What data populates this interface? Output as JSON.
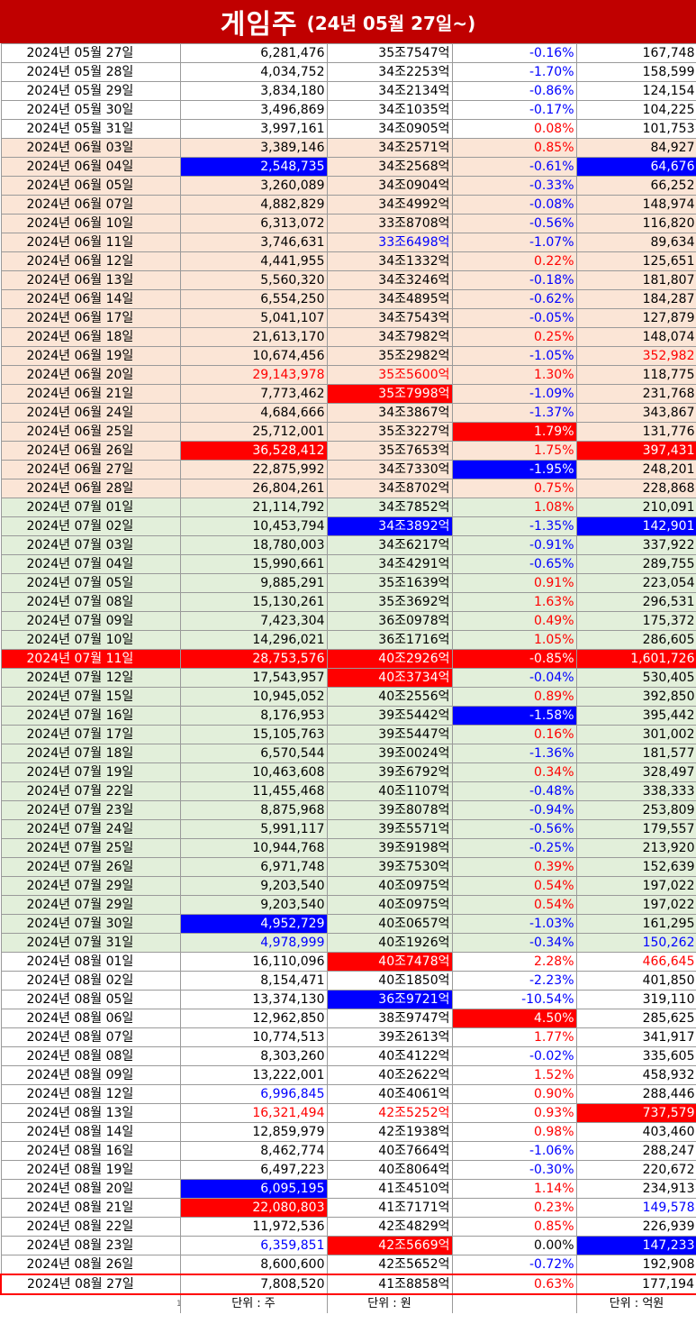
{
  "title": {
    "main": "게임주",
    "sub": "(24년 05월 27일~)"
  },
  "units": [
    "1",
    "단위 : 주",
    "단위 : 원",
    "",
    "단위 : 억원"
  ],
  "rows": [
    {
      "date": "2024년 05월 27일",
      "volume": "6,281,476",
      "cap": "35조7547억",
      "change": "-0.16%",
      "amount": "167,748",
      "bg": "white",
      "styles": [
        "",
        "",
        "",
        "blue",
        ""
      ]
    },
    {
      "date": "2024년 05월 28일",
      "volume": "4,034,752",
      "cap": "34조2253억",
      "change": "-1.70%",
      "amount": "158,599",
      "bg": "white",
      "styles": [
        "",
        "",
        "",
        "blue",
        ""
      ]
    },
    {
      "date": "2024년 05월 29일",
      "volume": "3,834,180",
      "cap": "34조2134억",
      "change": "-0.86%",
      "amount": "124,154",
      "bg": "white",
      "styles": [
        "",
        "",
        "",
        "blue",
        ""
      ]
    },
    {
      "date": "2024년 05월 30일",
      "volume": "3,496,869",
      "cap": "34조1035억",
      "change": "-0.17%",
      "amount": "104,225",
      "bg": "white",
      "styles": [
        "",
        "",
        "",
        "blue",
        ""
      ]
    },
    {
      "date": "2024년 05월 31일",
      "volume": "3,997,161",
      "cap": "34조0905억",
      "change": "0.08%",
      "amount": "101,753",
      "bg": "white",
      "styles": [
        "",
        "",
        "",
        "red",
        ""
      ]
    },
    {
      "date": "2024년 06월 03일",
      "volume": "3,389,146",
      "cap": "34조2571억",
      "change": "0.85%",
      "amount": "84,927",
      "bg": "peach",
      "styles": [
        "",
        "",
        "",
        "red",
        ""
      ]
    },
    {
      "date": "2024년 06월 04일",
      "volume": "2,548,735",
      "cap": "34조2568억",
      "change": "-0.61%",
      "amount": "64,676",
      "bg": "peach",
      "styles": [
        "",
        "hl-blue",
        "",
        "blue",
        "hl-blue"
      ]
    },
    {
      "date": "2024년 06월 05일",
      "volume": "3,260,089",
      "cap": "34조0904억",
      "change": "-0.33%",
      "amount": "66,252",
      "bg": "peach",
      "styles": [
        "",
        "",
        "",
        "blue",
        ""
      ]
    },
    {
      "date": "2024년 06월 07일",
      "volume": "4,882,829",
      "cap": "34조4992억",
      "change": "-0.08%",
      "amount": "148,974",
      "bg": "peach",
      "styles": [
        "",
        "",
        "",
        "blue",
        ""
      ]
    },
    {
      "date": "2024년 06월 10일",
      "volume": "6,313,072",
      "cap": "33조8708억",
      "change": "-0.56%",
      "amount": "116,820",
      "bg": "peach",
      "styles": [
        "",
        "",
        "",
        "blue",
        ""
      ]
    },
    {
      "date": "2024년 06월 11일",
      "volume": "3,746,631",
      "cap": "33조6498억",
      "change": "-1.07%",
      "amount": "89,634",
      "bg": "peach",
      "styles": [
        "",
        "",
        "blue",
        "blue",
        ""
      ]
    },
    {
      "date": "2024년 06월 12일",
      "volume": "4,441,955",
      "cap": "34조1332억",
      "change": "0.22%",
      "amount": "125,651",
      "bg": "peach",
      "styles": [
        "",
        "",
        "",
        "red",
        ""
      ]
    },
    {
      "date": "2024년 06월 13일",
      "volume": "5,560,320",
      "cap": "34조3246억",
      "change": "-0.18%",
      "amount": "181,807",
      "bg": "peach",
      "styles": [
        "",
        "",
        "",
        "blue",
        ""
      ]
    },
    {
      "date": "2024년 06월 14일",
      "volume": "6,554,250",
      "cap": "34조4895억",
      "change": "-0.62%",
      "amount": "184,287",
      "bg": "peach",
      "styles": [
        "",
        "",
        "",
        "blue",
        ""
      ]
    },
    {
      "date": "2024년 06월 17일",
      "volume": "5,041,107",
      "cap": "34조7543억",
      "change": "-0.05%",
      "amount": "127,879",
      "bg": "peach",
      "styles": [
        "",
        "",
        "",
        "blue",
        ""
      ]
    },
    {
      "date": "2024년 06월 18일",
      "volume": "21,613,170",
      "cap": "34조7982억",
      "change": "0.25%",
      "amount": "148,074",
      "bg": "peach",
      "styles": [
        "",
        "",
        "",
        "red",
        ""
      ]
    },
    {
      "date": "2024년 06월 19일",
      "volume": "10,674,456",
      "cap": "35조2982억",
      "change": "-1.05%",
      "amount": "352,982",
      "bg": "peach",
      "styles": [
        "",
        "",
        "",
        "blue",
        "red"
      ]
    },
    {
      "date": "2024년 06월 20일",
      "volume": "29,143,978",
      "cap": "35조5600억",
      "change": "1.30%",
      "amount": "118,775",
      "bg": "peach",
      "styles": [
        "",
        "red",
        "red",
        "red",
        ""
      ]
    },
    {
      "date": "2024년 06월 21일",
      "volume": "7,773,462",
      "cap": "35조7998억",
      "change": "-1.09%",
      "amount": "231,768",
      "bg": "peach",
      "styles": [
        "",
        "",
        "hl-red",
        "blue",
        ""
      ]
    },
    {
      "date": "2024년 06월 24일",
      "volume": "4,684,666",
      "cap": "34조3867억",
      "change": "-1.37%",
      "amount": "343,867",
      "bg": "peach",
      "styles": [
        "",
        "",
        "",
        "blue",
        ""
      ]
    },
    {
      "date": "2024년 06월 25일",
      "volume": "25,712,001",
      "cap": "35조3227억",
      "change": "1.79%",
      "amount": "131,776",
      "bg": "peach",
      "styles": [
        "",
        "",
        "",
        "hl-red",
        ""
      ]
    },
    {
      "date": "2024년 06월 26일",
      "volume": "36,528,412",
      "cap": "35조7653억",
      "change": "1.75%",
      "amount": "397,431",
      "bg": "peach",
      "styles": [
        "",
        "hl-red",
        "",
        "red",
        "hl-red"
      ]
    },
    {
      "date": "2024년 06월 27일",
      "volume": "22,875,992",
      "cap": "34조7330억",
      "change": "-1.95%",
      "amount": "248,201",
      "bg": "peach",
      "styles": [
        "",
        "",
        "",
        "hl-blue",
        ""
      ]
    },
    {
      "date": "2024년 06월 28일",
      "volume": "26,804,261",
      "cap": "34조8702억",
      "change": "0.75%",
      "amount": "228,868",
      "bg": "peach",
      "styles": [
        "",
        "",
        "",
        "red",
        ""
      ]
    },
    {
      "date": "2024년 07월 01일",
      "volume": "21,114,792",
      "cap": "34조7852억",
      "change": "1.08%",
      "amount": "210,091",
      "bg": "green",
      "styles": [
        "",
        "",
        "",
        "red",
        ""
      ]
    },
    {
      "date": "2024년 07월 02일",
      "volume": "10,453,794",
      "cap": "34조3892억",
      "change": "-1.35%",
      "amount": "142,901",
      "bg": "green",
      "styles": [
        "",
        "",
        "hl-blue",
        "blue",
        "hl-blue"
      ]
    },
    {
      "date": "2024년 07월 03일",
      "volume": "18,780,003",
      "cap": "34조6217억",
      "change": "-0.91%",
      "amount": "337,922",
      "bg": "green",
      "styles": [
        "",
        "",
        "",
        "blue",
        ""
      ]
    },
    {
      "date": "2024년 07월 04일",
      "volume": "15,990,661",
      "cap": "34조4291억",
      "change": "-0.65%",
      "amount": "289,755",
      "bg": "green",
      "styles": [
        "",
        "",
        "",
        "blue",
        ""
      ]
    },
    {
      "date": "2024년 07월 05일",
      "volume": "9,885,291",
      "cap": "35조1639억",
      "change": "0.91%",
      "amount": "223,054",
      "bg": "green",
      "styles": [
        "",
        "",
        "",
        "red",
        ""
      ]
    },
    {
      "date": "2024년 07월 08일",
      "volume": "15,130,261",
      "cap": "35조3692억",
      "change": "1.63%",
      "amount": "296,531",
      "bg": "green",
      "styles": [
        "",
        "",
        "",
        "red",
        ""
      ]
    },
    {
      "date": "2024년 07월 09일",
      "volume": "7,423,304",
      "cap": "36조0978억",
      "change": "0.49%",
      "amount": "175,372",
      "bg": "green",
      "styles": [
        "",
        "",
        "",
        "red",
        ""
      ]
    },
    {
      "date": "2024년 07월 10일",
      "volume": "14,296,021",
      "cap": "36조1716억",
      "change": "1.05%",
      "amount": "286,605",
      "bg": "green",
      "styles": [
        "",
        "",
        "",
        "red",
        ""
      ]
    },
    {
      "date": "2024년 07월 11일",
      "volume": "28,753,576",
      "cap": "40조2926억",
      "change": "-0.85%",
      "amount": "1,601,726",
      "bg": "red",
      "styles": [
        "",
        "",
        "",
        "blue",
        ""
      ]
    },
    {
      "date": "2024년 07월 12일",
      "volume": "17,543,957",
      "cap": "40조3734억",
      "change": "-0.04%",
      "amount": "530,405",
      "bg": "green",
      "styles": [
        "",
        "",
        "hl-red",
        "blue",
        ""
      ]
    },
    {
      "date": "2024년 07월 15일",
      "volume": "10,945,052",
      "cap": "40조2556억",
      "change": "0.89%",
      "amount": "392,850",
      "bg": "green",
      "styles": [
        "",
        "",
        "",
        "red",
        ""
      ]
    },
    {
      "date": "2024년 07월 16일",
      "volume": "8,176,953",
      "cap": "39조5442억",
      "change": "-1.58%",
      "amount": "395,442",
      "bg": "green",
      "styles": [
        "",
        "",
        "",
        "hl-blue",
        ""
      ]
    },
    {
      "date": "2024년 07월 17일",
      "volume": "15,105,763",
      "cap": "39조5447억",
      "change": "0.16%",
      "amount": "301,002",
      "bg": "green",
      "styles": [
        "",
        "",
        "",
        "red",
        ""
      ]
    },
    {
      "date": "2024년 07월 18일",
      "volume": "6,570,544",
      "cap": "39조0024억",
      "change": "-1.36%",
      "amount": "181,577",
      "bg": "green",
      "styles": [
        "",
        "",
        "",
        "blue",
        ""
      ]
    },
    {
      "date": "2024년 07월 19일",
      "volume": "10,463,608",
      "cap": "39조6792억",
      "change": "0.34%",
      "amount": "328,497",
      "bg": "green",
      "styles": [
        "",
        "",
        "",
        "red",
        ""
      ]
    },
    {
      "date": "2024년 07월 22일",
      "volume": "11,455,468",
      "cap": "40조1107억",
      "change": "-0.48%",
      "amount": "338,333",
      "bg": "green",
      "styles": [
        "",
        "",
        "",
        "blue",
        ""
      ]
    },
    {
      "date": "2024년 07월 23일",
      "volume": "8,875,968",
      "cap": "39조8078억",
      "change": "-0.94%",
      "amount": "253,809",
      "bg": "green",
      "styles": [
        "",
        "",
        "",
        "blue",
        ""
      ]
    },
    {
      "date": "2024년 07월 24일",
      "volume": "5,991,117",
      "cap": "39조5571억",
      "change": "-0.56%",
      "amount": "179,557",
      "bg": "green",
      "styles": [
        "",
        "",
        "",
        "blue",
        ""
      ]
    },
    {
      "date": "2024년 07월 25일",
      "volume": "10,944,768",
      "cap": "39조9198억",
      "change": "-0.25%",
      "amount": "213,920",
      "bg": "green",
      "styles": [
        "",
        "",
        "",
        "blue",
        ""
      ]
    },
    {
      "date": "2024년 07월 26일",
      "volume": "6,971,748",
      "cap": "39조7530억",
      "change": "0.39%",
      "amount": "152,639",
      "bg": "green",
      "styles": [
        "",
        "",
        "",
        "red",
        ""
      ]
    },
    {
      "date": "2024년 07월 29일",
      "volume": "9,203,540",
      "cap": "40조0975억",
      "change": "0.54%",
      "amount": "197,022",
      "bg": "green",
      "styles": [
        "",
        "",
        "",
        "red",
        ""
      ]
    },
    {
      "date": "2024년 07월 29일",
      "volume": "9,203,540",
      "cap": "40조0975억",
      "change": "0.54%",
      "amount": "197,022",
      "bg": "green",
      "styles": [
        "",
        "",
        "",
        "red",
        ""
      ]
    },
    {
      "date": "2024년 07월 30일",
      "volume": "4,952,729",
      "cap": "40조0657억",
      "change": "-1.03%",
      "amount": "161,295",
      "bg": "green",
      "styles": [
        "",
        "hl-blue",
        "",
        "blue",
        ""
      ]
    },
    {
      "date": "2024년 07월 31일",
      "volume": "4,978,999",
      "cap": "40조1926억",
      "change": "-0.34%",
      "amount": "150,262",
      "bg": "green",
      "styles": [
        "",
        "blue",
        "",
        "blue",
        "blue"
      ]
    },
    {
      "date": "2024년 08월 01일",
      "volume": "16,110,096",
      "cap": "40조7478억",
      "change": "2.28%",
      "amount": "466,645",
      "bg": "white",
      "styles": [
        "",
        "",
        "hl-red",
        "red",
        "red"
      ]
    },
    {
      "date": "2024년 08월 02일",
      "volume": "8,154,471",
      "cap": "40조1850억",
      "change": "-2.23%",
      "amount": "401,850",
      "bg": "white",
      "styles": [
        "",
        "",
        "",
        "blue",
        ""
      ]
    },
    {
      "date": "2024년 08월 05일",
      "volume": "13,374,130",
      "cap": "36조9721억",
      "change": "-10.54%",
      "amount": "319,110",
      "bg": "white",
      "styles": [
        "",
        "",
        "hl-blue",
        "blue",
        ""
      ]
    },
    {
      "date": "2024년 08월 06일",
      "volume": "12,962,850",
      "cap": "38조9747억",
      "change": "4.50%",
      "amount": "285,625",
      "bg": "white",
      "styles": [
        "",
        "",
        "",
        "hl-red",
        ""
      ]
    },
    {
      "date": "2024년 08월 07일",
      "volume": "10,774,513",
      "cap": "39조2613억",
      "change": "1.77%",
      "amount": "341,917",
      "bg": "white",
      "styles": [
        "",
        "",
        "",
        "red",
        ""
      ]
    },
    {
      "date": "2024년 08월 08일",
      "volume": "8,303,260",
      "cap": "40조4122억",
      "change": "-0.02%",
      "amount": "335,605",
      "bg": "white",
      "styles": [
        "",
        "",
        "",
        "blue",
        ""
      ]
    },
    {
      "date": "2024년 08월 09일",
      "volume": "13,222,001",
      "cap": "40조2622억",
      "change": "1.52%",
      "amount": "458,932",
      "bg": "white",
      "styles": [
        "",
        "",
        "",
        "red",
        ""
      ]
    },
    {
      "date": "2024년 08월 12일",
      "volume": "6,996,845",
      "cap": "40조4061억",
      "change": "0.90%",
      "amount": "288,446",
      "bg": "white",
      "styles": [
        "",
        "blue",
        "",
        "red",
        ""
      ]
    },
    {
      "date": "2024년 08월 13일",
      "volume": "16,321,494",
      "cap": "42조5252억",
      "change": "0.93%",
      "amount": "737,579",
      "bg": "white",
      "styles": [
        "",
        "red",
        "red",
        "red",
        "hl-red"
      ]
    },
    {
      "date": "2024년 08월 14일",
      "volume": "12,859,979",
      "cap": "42조1938억",
      "change": "0.98%",
      "amount": "403,460",
      "bg": "white",
      "styles": [
        "",
        "",
        "",
        "red",
        ""
      ]
    },
    {
      "date": "2024년 08월 16일",
      "volume": "8,462,774",
      "cap": "40조7664억",
      "change": "-1.06%",
      "amount": "288,247",
      "bg": "white",
      "styles": [
        "",
        "",
        "",
        "blue",
        ""
      ]
    },
    {
      "date": "2024년 08월 19일",
      "volume": "6,497,223",
      "cap": "40조8064억",
      "change": "-0.30%",
      "amount": "220,672",
      "bg": "white",
      "styles": [
        "",
        "",
        "",
        "blue",
        ""
      ]
    },
    {
      "date": "2024년 08월 20일",
      "volume": "6,095,195",
      "cap": "41조4510억",
      "change": "1.14%",
      "amount": "234,913",
      "bg": "white",
      "styles": [
        "",
        "hl-blue",
        "",
        "red",
        ""
      ]
    },
    {
      "date": "2024년 08월 21일",
      "volume": "22,080,803",
      "cap": "41조7171억",
      "change": "0.23%",
      "amount": "149,578",
      "bg": "white",
      "styles": [
        "",
        "hl-red",
        "",
        "red",
        "blue"
      ]
    },
    {
      "date": "2024년 08월 22일",
      "volume": "11,972,536",
      "cap": "42조4829억",
      "change": "0.85%",
      "amount": "226,939",
      "bg": "white",
      "styles": [
        "",
        "",
        "",
        "red",
        ""
      ]
    },
    {
      "date": "2024년 08월 23일",
      "volume": "6,359,851",
      "cap": "42조5669억",
      "change": "0.00%",
      "amount": "147,233",
      "bg": "white",
      "styles": [
        "",
        "blue",
        "hl-red",
        "",
        "hl-blue"
      ]
    },
    {
      "date": "2024년 08월 26일",
      "volume": "8,600,600",
      "cap": "42조5652억",
      "change": "-0.72%",
      "amount": "192,908",
      "bg": "white",
      "styles": [
        "",
        "",
        "",
        "blue",
        ""
      ]
    },
    {
      "date": "2024년 08월 27일",
      "volume": "7,808,520",
      "cap": "41조8858억",
      "change": "0.63%",
      "amount": "177,194",
      "bg": "white",
      "styles": [
        "",
        "",
        "",
        "red",
        ""
      ],
      "last": true
    }
  ]
}
